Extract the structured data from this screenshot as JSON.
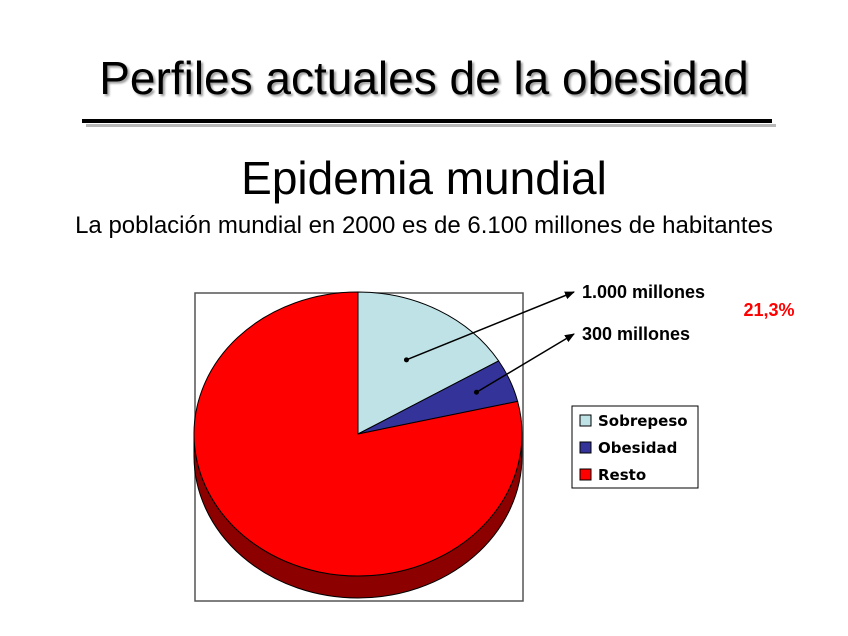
{
  "slide": {
    "title": "Perfiles actuales de la obesidad",
    "subtitle": "Epidemia mundial",
    "population_text": "La población mundial en 2000 es de 6.100 millones de habitantes"
  },
  "chart_data": {
    "type": "pie",
    "style": "3d",
    "title": "",
    "slices": [
      {
        "name": "Sobrepeso",
        "value": 1000,
        "color": "#bfe2e6"
      },
      {
        "name": "Obesidad",
        "value": 300,
        "color": "#333399"
      },
      {
        "name": "Resto",
        "value": 4800,
        "color": "#ff0000"
      }
    ],
    "annotations": [
      {
        "text": "1.000 millones",
        "target": "Sobrepeso"
      },
      {
        "text": "300 millones",
        "target": "Obesidad"
      }
    ],
    "highlight_text": "21,3%",
    "highlight_color": "#ff0000",
    "legend": {
      "placement": "right",
      "items": [
        "Sobrepeso",
        "Obesidad",
        "Resto"
      ]
    }
  }
}
